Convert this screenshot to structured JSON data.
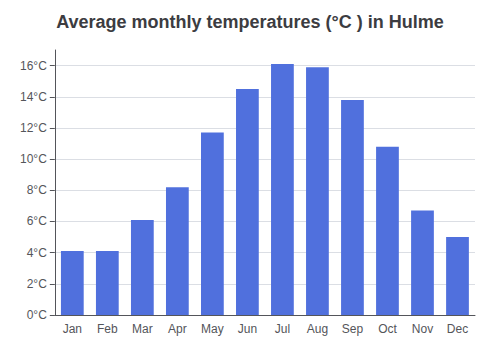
{
  "chart_data": {
    "type": "bar",
    "title": "Average monthly temperatures (°C ) in Hulme",
    "categories": [
      "Jan",
      "Feb",
      "Mar",
      "Apr",
      "May",
      "Jun",
      "Jul",
      "Aug",
      "Sep",
      "Oct",
      "Nov",
      "Dec"
    ],
    "values": [
      4.1,
      4.1,
      6.1,
      8.2,
      11.7,
      14.5,
      16.1,
      15.9,
      13.8,
      10.8,
      6.7,
      5.0
    ],
    "ylim": [
      0,
      17
    ],
    "yticks": [
      {
        "value": 0,
        "label": "0°C"
      },
      {
        "value": 2,
        "label": "2°C"
      },
      {
        "value": 4,
        "label": "4°C"
      },
      {
        "value": 6,
        "label": "6°C"
      },
      {
        "value": 8,
        "label": "8°C"
      },
      {
        "value": 10,
        "label": "10°C"
      },
      {
        "value": 12,
        "label": "12°C"
      },
      {
        "value": 14,
        "label": "14°C"
      },
      {
        "value": 16,
        "label": "16°C"
      }
    ],
    "grid": true
  }
}
